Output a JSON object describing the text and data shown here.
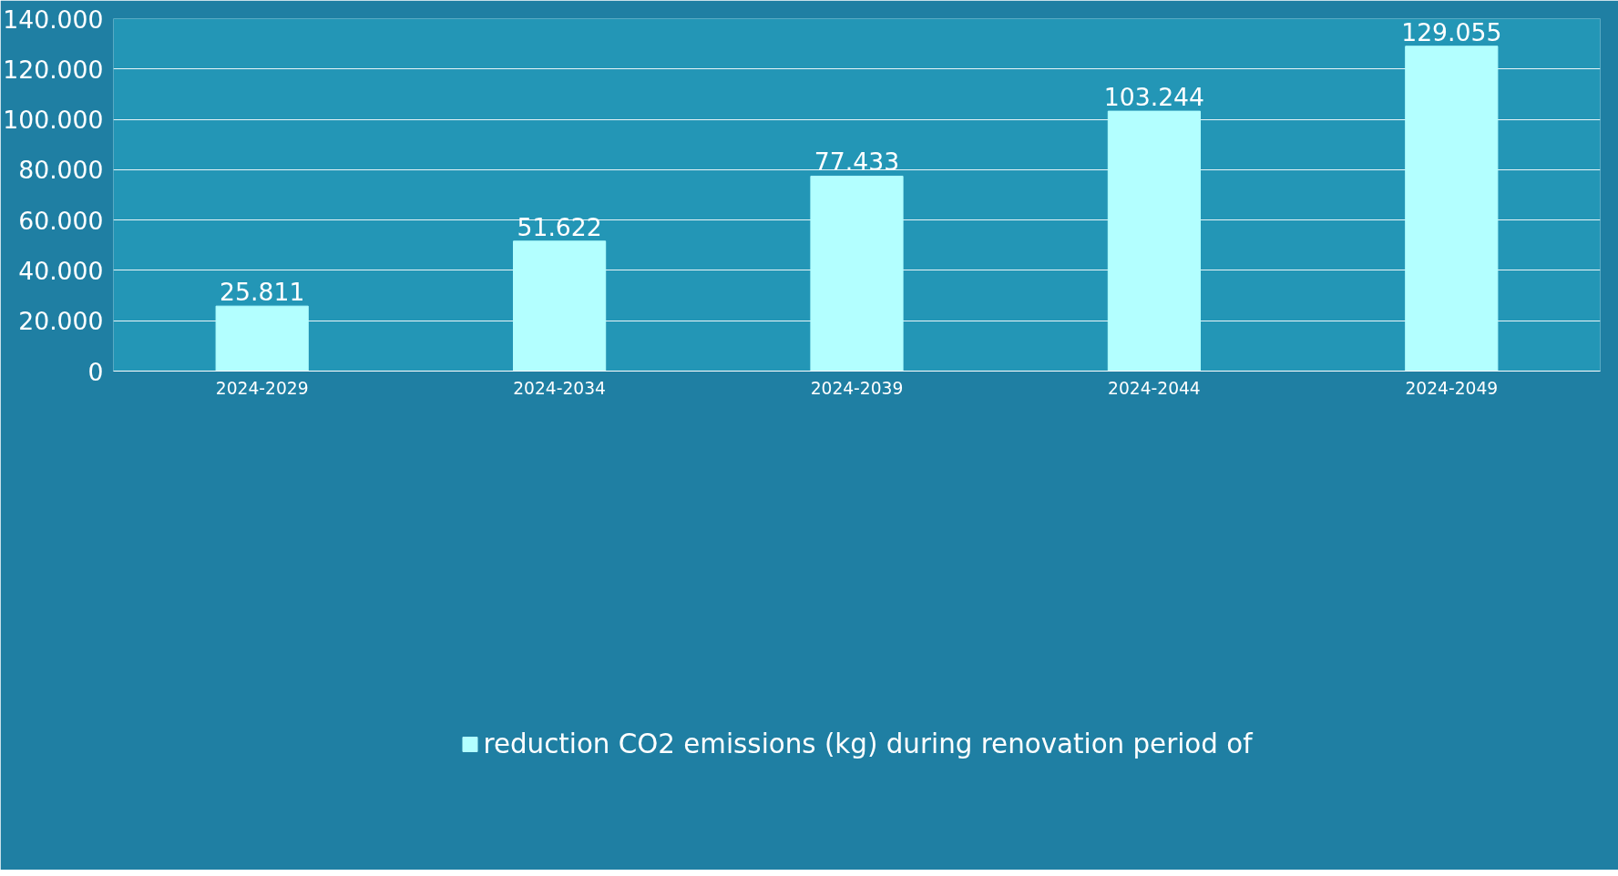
{
  "chart_data": {
    "type": "bar",
    "categories": [
      "2024-2029",
      "2024-2034",
      "2024-2039",
      "2024-2044",
      "2024-2049"
    ],
    "series": [
      {
        "name": "reduction CO2 emissions (kg) during renovation period of",
        "color": "#b3ffff",
        "values": [
          25811,
          51622,
          77433,
          103244,
          129055
        ],
        "value_labels": [
          "25.811",
          "51.622",
          "77.433",
          "103.244",
          "129.055"
        ]
      }
    ],
    "ylim": [
      0,
      140000
    ],
    "yticks": [
      {
        "value": 0,
        "label": "0"
      },
      {
        "value": 20000,
        "label": "20.000"
      },
      {
        "value": 40000,
        "label": "40.000"
      },
      {
        "value": 60000,
        "label": "60.000"
      },
      {
        "value": 80000,
        "label": "80.000"
      },
      {
        "value": 100000,
        "label": "100.000"
      },
      {
        "value": 120000,
        "label": "120.000"
      },
      {
        "value": 140000,
        "label": "140.000"
      }
    ],
    "grid": "y",
    "legend": "bottom"
  }
}
